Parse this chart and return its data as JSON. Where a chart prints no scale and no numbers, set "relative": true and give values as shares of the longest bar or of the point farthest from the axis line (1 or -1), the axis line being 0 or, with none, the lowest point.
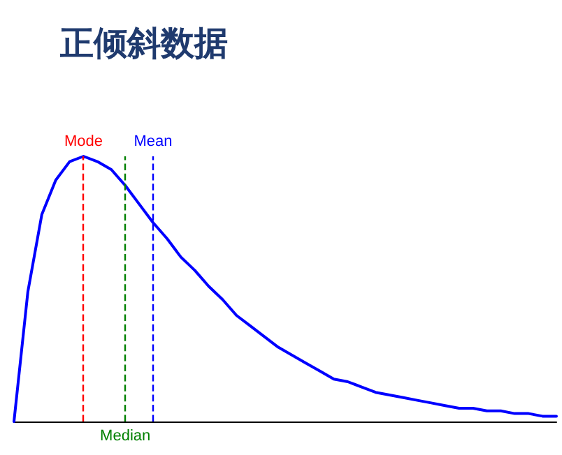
{
  "chart_data": {
    "type": "line",
    "title": "正倾斜数据",
    "relative": true,
    "tick_labels": false,
    "marker": "none",
    "line_style": "solid",
    "categories": [
      null,
      null,
      null,
      null,
      null,
      null,
      null,
      null,
      null,
      null,
      null,
      null,
      null,
      null,
      null,
      null,
      null,
      null,
      null,
      null,
      null,
      null,
      null,
      null,
      null,
      null,
      null,
      null,
      null,
      null,
      null,
      null,
      null,
      null,
      null,
      null,
      null,
      null,
      null,
      null
    ],
    "series": [
      {
        "color": "#0000ff",
        "values": [
          0,
          0.49,
          0.78,
          0.91,
          0.98,
          1.0,
          0.98,
          0.95,
          0.89,
          0.82,
          0.75,
          0.69,
          0.62,
          0.57,
          0.51,
          0.46,
          0.4,
          0.36,
          0.32,
          0.28,
          0.25,
          0.22,
          0.19,
          0.16,
          0.15,
          0.13,
          0.11,
          0.1,
          0.09,
          0.08,
          0.07,
          0.06,
          0.05,
          0.05,
          0.04,
          0.04,
          0.03,
          0.03,
          0.02,
          0.02
        ]
      }
    ],
    "ref_lines": [
      {
        "axis": "x",
        "label": "Mode",
        "color": "#ff0000",
        "line_style": "dashed"
      },
      {
        "axis": "x",
        "label": "Median",
        "color": "#008000",
        "line_style": "dashed"
      },
      {
        "axis": "x",
        "label": "Mean",
        "color": "#0000ff",
        "line_style": "dashed"
      }
    ]
  }
}
